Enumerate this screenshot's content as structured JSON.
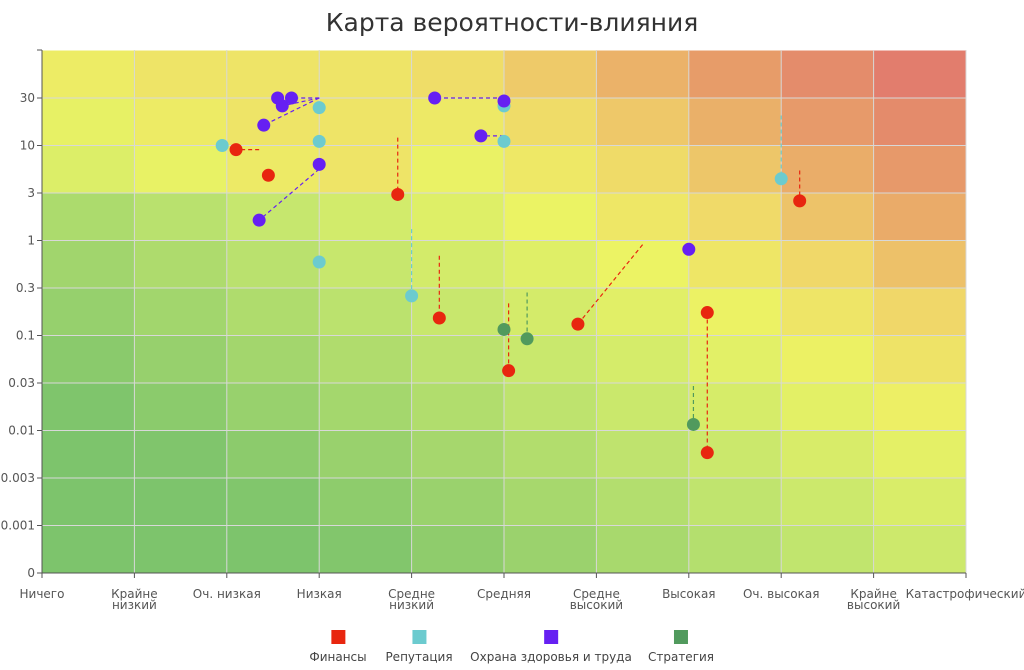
{
  "chart_data": {
    "type": "scatter",
    "title": "Карта вероятности-влияния",
    "x_categories": [
      "Ничего",
      "Крайне низкий",
      "Оч. низкая",
      "Низкая",
      "Средне низкий",
      "Средняя",
      "Средне высокий",
      "Высокая",
      "Оч. высокая",
      "Крайне высокий",
      "Катастрофический"
    ],
    "y_ticks": [
      "0",
      "0.001",
      "0.003",
      "0.01",
      "0.03",
      "0.1",
      "0.3",
      "1",
      "3",
      "10",
      "30"
    ],
    "y_scale": "log",
    "grid": true,
    "legend_position": "bottom",
    "colors": {
      "Финансы": "#e8260f",
      "Репутация": "#6ccbcf",
      "Охрана здоровья и труда": "#6620f2",
      "Стратегия": "#519a5d"
    },
    "series": [
      {
        "name": "Финансы",
        "points": [
          {
            "x": 2.1,
            "y": 9,
            "from_x": 2.35,
            "from_y": 9
          },
          {
            "x": 2.45,
            "y": 4.7
          },
          {
            "x": 3.85,
            "y": 2.9,
            "from_x": 3.85,
            "from_y": 12
          },
          {
            "x": 4.3,
            "y": 0.15,
            "from_x": 4.3,
            "from_y": 0.68
          },
          {
            "x": 5.05,
            "y": 0.041,
            "from_x": 5.05,
            "from_y": 0.21
          },
          {
            "x": 5.8,
            "y": 0.13,
            "from_x": 6.5,
            "from_y": 0.9
          },
          {
            "x": 7.2,
            "y": 0.0057,
            "from_x": 7.2,
            "from_y": 0.17
          },
          {
            "x": 7.2,
            "y": 0.17
          },
          {
            "x": 8.2,
            "y": 2.5,
            "from_x": 8.2,
            "from_y": 5.3
          }
        ]
      },
      {
        "name": "Репутация",
        "points": [
          {
            "x": 1.95,
            "y": 10
          },
          {
            "x": 3.0,
            "y": 24
          },
          {
            "x": 3.0,
            "y": 11
          },
          {
            "x": 3.0,
            "y": 0.58
          },
          {
            "x": 4.0,
            "y": 0.25,
            "from_x": 4.0,
            "from_y": 1.3
          },
          {
            "x": 5.0,
            "y": 25
          },
          {
            "x": 5.0,
            "y": 11
          },
          {
            "x": 8.0,
            "y": 4.3,
            "from_x": 8.0,
            "from_y": 20
          }
        ]
      },
      {
        "name": "Охрана здоровья и труда",
        "points": [
          {
            "x": 2.4,
            "y": 16,
            "from_x": 3.0,
            "from_y": 30
          },
          {
            "x": 2.55,
            "y": 30
          },
          {
            "x": 2.6,
            "y": 25,
            "from_x": 3.0,
            "from_y": 30
          },
          {
            "x": 2.7,
            "y": 30,
            "from_x": 3.0,
            "from_y": 30
          },
          {
            "x": 3.0,
            "y": 6.2
          },
          {
            "x": 2.35,
            "y": 1.6,
            "from_x": 3.0,
            "from_y": 5.5
          },
          {
            "x": 4.25,
            "y": 30,
            "from_x": 5.0,
            "from_y": 30
          },
          {
            "x": 5.0,
            "y": 28
          },
          {
            "x": 4.75,
            "y": 12.5,
            "from_x": 5.0,
            "from_y": 12.5
          },
          {
            "x": 7.0,
            "y": 0.8
          }
        ]
      },
      {
        "name": "Стратегия",
        "points": [
          {
            "x": 5.0,
            "y": 0.115
          },
          {
            "x": 5.25,
            "y": 0.092,
            "from_x": 5.25,
            "from_y": 0.27
          },
          {
            "x": 7.05,
            "y": 0.0115,
            "from_x": 7.05,
            "from_y": 0.028
          }
        ]
      }
    ]
  }
}
